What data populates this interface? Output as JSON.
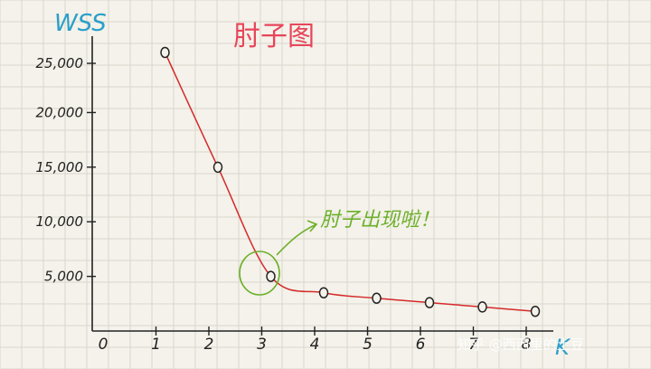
{
  "chart_data": {
    "type": "line",
    "title": "肘子图",
    "ylabel": "WSS",
    "xlabel": "K",
    "x_ticks": [
      "0",
      "1",
      "2",
      "3",
      "4",
      "5",
      "6",
      "7",
      "8"
    ],
    "y_ticks": [
      "25,000",
      "20,000",
      "15,000",
      "10,000",
      "5,000"
    ],
    "ylim": [
      0,
      27500
    ],
    "xlim": [
      0,
      8
    ],
    "series": [
      {
        "x": [
          1,
          2,
          3,
          4,
          5,
          6,
          7,
          8
        ],
        "values": [
          25500,
          15000,
          5000,
          3500,
          3000,
          2600,
          2200,
          1800
        ]
      }
    ],
    "annotation": {
      "text": "肘子出现啦！",
      "x": 3,
      "y": 5000
    },
    "grid": true,
    "line_color": "#d42a2a",
    "annotation_color": "#6db02a",
    "title_color": "#e8455a",
    "axis_label_color": "#2a9fc9"
  },
  "watermark": "知乎 @西西里的土豆"
}
